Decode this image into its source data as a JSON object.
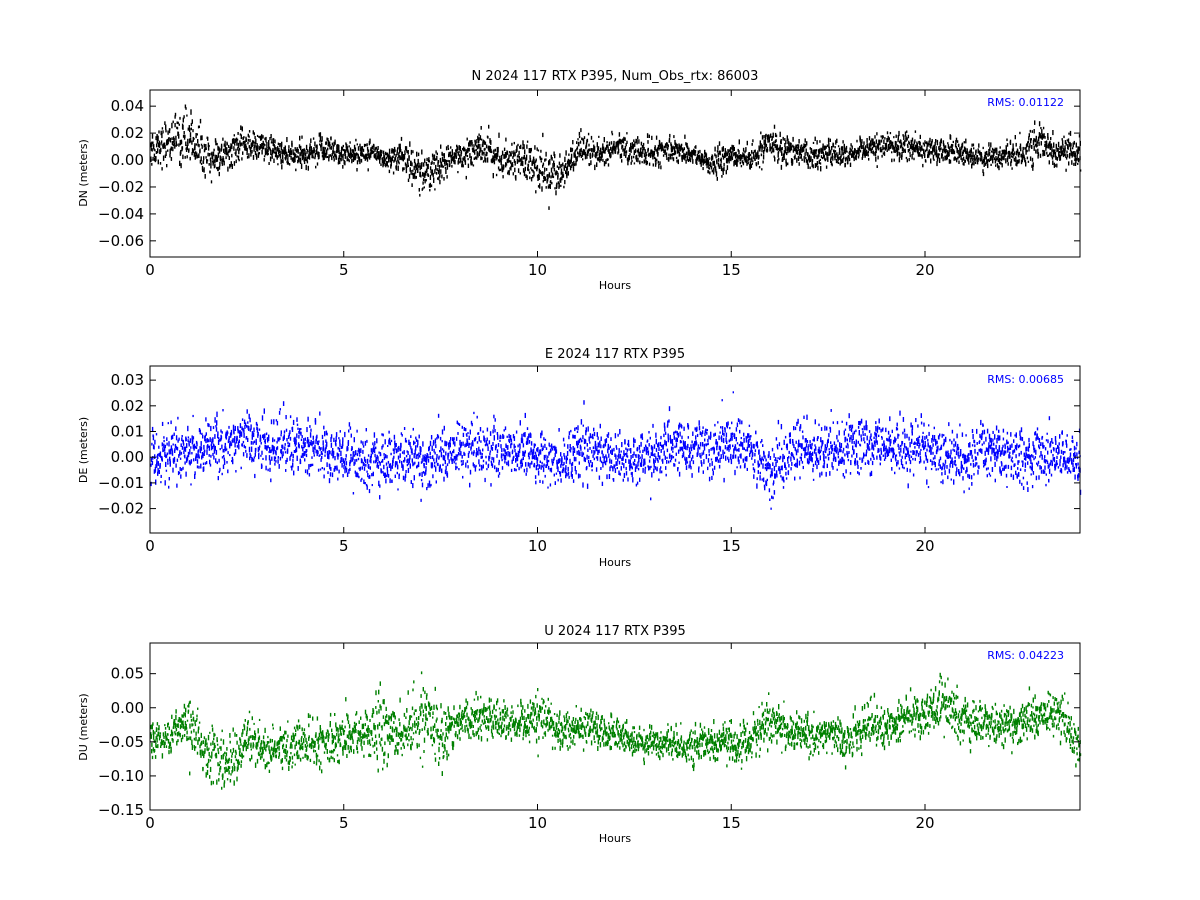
{
  "chart_data": [
    {
      "type": "scatter",
      "title": "N 2024 117 RTX  P395, Num_Obs_rtx: 86003",
      "xlabel": "Hours",
      "ylabel": "DN (meters)",
      "xlim": [
        0,
        24
      ],
      "ylim": [
        -0.072,
        0.052
      ],
      "xticks": [
        0,
        5,
        10,
        15,
        20
      ],
      "xtick_labels": [
        "0",
        "5",
        "10",
        "15",
        "20"
      ],
      "yticks": [
        0.04,
        0.02,
        0.0,
        -0.02,
        -0.04,
        -0.06
      ],
      "ytick_labels": [
        "0.04",
        "0.02",
        "0.00",
        "−0.02",
        "−0.04",
        "−0.06"
      ],
      "rms_label": "RMS:  0.01122",
      "color": "#000000",
      "grid": false,
      "series": [
        {
          "x": [
            0,
            0.5,
            1,
            1.5,
            2,
            2.5,
            3,
            3.5,
            4,
            4.5,
            5,
            5.5,
            6,
            6.5,
            7,
            7.5,
            8,
            8.5,
            9,
            9.5,
            10,
            10.5,
            11,
            11.5,
            12,
            12.5,
            13,
            13.5,
            14,
            14.5,
            15,
            15.5,
            16,
            16.5,
            17,
            17.5,
            18,
            18.5,
            19,
            19.5,
            20,
            20.5,
            21,
            21.5,
            22,
            22.5,
            23,
            23.5,
            24
          ],
          "y": [
            0.008,
            0.015,
            0.018,
            0.0,
            0.005,
            0.012,
            0.008,
            0.004,
            0.002,
            0.01,
            0.004,
            0.006,
            0.002,
            0.003,
            -0.01,
            -0.005,
            0.004,
            0.01,
            0.0,
            0.003,
            -0.008,
            -0.012,
            0.006,
            0.004,
            0.01,
            0.006,
            0.005,
            0.008,
            0.004,
            -0.004,
            0.004,
            0.0,
            0.012,
            0.008,
            0.004,
            0.006,
            0.002,
            0.008,
            0.01,
            0.012,
            0.006,
            0.008,
            0.004,
            0.002,
            0.004,
            0.006,
            0.012,
            0.004,
            0.008
          ],
          "spread": [
            0.016,
            0.018,
            0.02,
            0.016,
            0.012,
            0.012,
            0.012,
            0.01,
            0.012,
            0.012,
            0.01,
            0.01,
            0.01,
            0.012,
            0.016,
            0.014,
            0.012,
            0.014,
            0.012,
            0.014,
            0.018,
            0.018,
            0.014,
            0.012,
            0.012,
            0.01,
            0.01,
            0.01,
            0.01,
            0.01,
            0.01,
            0.01,
            0.012,
            0.012,
            0.01,
            0.01,
            0.01,
            0.01,
            0.01,
            0.012,
            0.01,
            0.01,
            0.01,
            0.01,
            0.01,
            0.012,
            0.014,
            0.012,
            0.012
          ]
        }
      ]
    },
    {
      "type": "scatter",
      "title": "E 2024 117 RTX  P395",
      "xlabel": "Hours",
      "ylabel": "DE (meters)",
      "xlim": [
        0,
        24
      ],
      "ylim": [
        -0.0295,
        0.0355
      ],
      "xticks": [
        0,
        5,
        10,
        15,
        20
      ],
      "xtick_labels": [
        "0",
        "5",
        "10",
        "15",
        "20"
      ],
      "yticks": [
        0.03,
        0.02,
        0.01,
        0.0,
        -0.01,
        -0.02
      ],
      "ytick_labels": [
        "0.03",
        "0.02",
        "0.01",
        "0.00",
        "−0.01",
        "−0.02"
      ],
      "rms_label": "RMS:  0.00685",
      "color": "#0000ff",
      "grid": false,
      "series": [
        {
          "x": [
            0,
            0.5,
            1,
            1.5,
            2,
            2.5,
            3,
            3.5,
            4,
            4.5,
            5,
            5.5,
            6,
            6.5,
            7,
            7.5,
            8,
            8.5,
            9,
            9.5,
            10,
            10.5,
            11,
            11.5,
            12,
            12.5,
            13,
            13.5,
            14,
            14.5,
            15,
            15.5,
            16,
            16.5,
            17,
            17.5,
            18,
            18.5,
            19,
            19.5,
            20,
            20.5,
            21,
            21.5,
            22,
            22.5,
            23,
            23.5,
            24
          ],
          "y": [
            0.0,
            0.001,
            0.002,
            0.004,
            0.006,
            0.008,
            0.004,
            0.006,
            0.004,
            0.002,
            0.0,
            -0.002,
            -0.001,
            0.0,
            -0.002,
            0.001,
            0.003,
            0.004,
            0.002,
            0.004,
            0.0,
            -0.002,
            0.002,
            0.003,
            0.0,
            -0.001,
            0.001,
            0.003,
            0.004,
            0.005,
            0.005,
            0.004,
            -0.006,
            0.003,
            0.002,
            0.004,
            0.004,
            0.005,
            0.004,
            0.003,
            0.002,
            0.001,
            -0.002,
            0.002,
            0.001,
            -0.001,
            0.002,
            0.0,
            -0.001
          ],
          "spread": [
            0.011,
            0.011,
            0.011,
            0.011,
            0.012,
            0.012,
            0.012,
            0.012,
            0.011,
            0.011,
            0.011,
            0.011,
            0.011,
            0.011,
            0.011,
            0.011,
            0.012,
            0.012,
            0.011,
            0.012,
            0.012,
            0.012,
            0.011,
            0.011,
            0.011,
            0.011,
            0.011,
            0.011,
            0.011,
            0.012,
            0.012,
            0.011,
            0.014,
            0.011,
            0.011,
            0.011,
            0.011,
            0.012,
            0.011,
            0.011,
            0.011,
            0.011,
            0.012,
            0.012,
            0.011,
            0.012,
            0.012,
            0.011,
            0.011
          ]
        }
      ]
    },
    {
      "type": "scatter",
      "title": "U 2024 117 RTX  P395",
      "xlabel": "Hours",
      "ylabel": "DU (meters)",
      "xlim": [
        0,
        24
      ],
      "ylim": [
        -0.15,
        0.095
      ],
      "xticks": [
        0,
        5,
        10,
        15,
        20
      ],
      "xtick_labels": [
        "0",
        "5",
        "10",
        "15",
        "20"
      ],
      "yticks": [
        0.05,
        0.0,
        -0.05,
        -0.1,
        -0.15
      ],
      "ytick_labels": [
        "0.05",
        "0.00",
        "−0.05",
        "−0.10",
        "−0.15"
      ],
      "rms_label": "RMS:  0.04223",
      "color": "#008000",
      "grid": false,
      "series": [
        {
          "x": [
            0,
            0.5,
            1,
            1.5,
            2,
            2.5,
            3,
            3.5,
            4,
            4.5,
            5,
            5.5,
            6,
            6.5,
            7,
            7.5,
            8,
            8.5,
            9,
            9.5,
            10,
            10.5,
            11,
            11.5,
            12,
            12.5,
            13,
            13.5,
            14,
            14.5,
            15,
            15.5,
            16,
            16.5,
            17,
            17.5,
            18,
            18.5,
            19,
            19.5,
            20,
            20.5,
            21,
            21.5,
            22,
            22.5,
            23,
            23.5,
            24
          ],
          "y": [
            -0.05,
            -0.04,
            -0.02,
            -0.07,
            -0.08,
            -0.05,
            -0.06,
            -0.06,
            -0.05,
            -0.055,
            -0.04,
            -0.04,
            -0.03,
            -0.04,
            -0.02,
            -0.035,
            -0.02,
            -0.01,
            -0.02,
            -0.03,
            -0.015,
            -0.03,
            -0.03,
            -0.03,
            -0.04,
            -0.05,
            -0.05,
            -0.05,
            -0.06,
            -0.05,
            -0.055,
            -0.045,
            -0.02,
            -0.035,
            -0.04,
            -0.035,
            -0.05,
            -0.02,
            -0.03,
            -0.015,
            -0.01,
            0.005,
            -0.02,
            -0.02,
            -0.03,
            -0.02,
            -0.01,
            -0.01,
            -0.06
          ],
          "spread": [
            0.03,
            0.03,
            0.035,
            0.04,
            0.045,
            0.04,
            0.035,
            0.035,
            0.03,
            0.035,
            0.045,
            0.05,
            0.05,
            0.045,
            0.055,
            0.05,
            0.03,
            0.03,
            0.03,
            0.035,
            0.04,
            0.03,
            0.03,
            0.03,
            0.025,
            0.025,
            0.025,
            0.025,
            0.025,
            0.03,
            0.03,
            0.03,
            0.035,
            0.03,
            0.03,
            0.03,
            0.035,
            0.035,
            0.03,
            0.03,
            0.035,
            0.04,
            0.035,
            0.03,
            0.03,
            0.03,
            0.035,
            0.035,
            0.035
          ]
        }
      ]
    }
  ]
}
